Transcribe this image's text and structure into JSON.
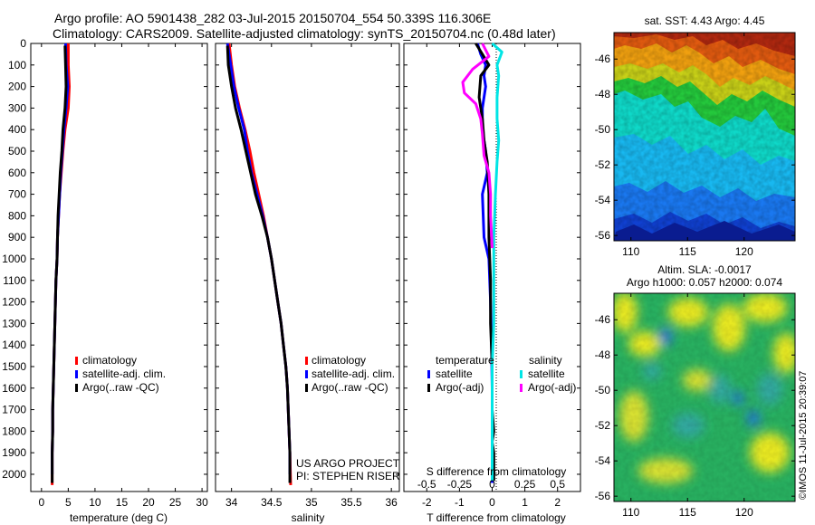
{
  "header": {
    "line1": "Argo profile: AO 5901438_282 03-Jul-2015 20150704_554 50.339S 116.306E",
    "line2": "Climatology: CARS2009. Satellite-adjusted climatology: synTS_20150704.nc (0.48d later)"
  },
  "colors": {
    "climatology": "#ff0000",
    "satellite": "#0000ff",
    "argo": "#000000",
    "salinity_satellite": "#00e5e5",
    "salinity_argo": "#ff00ff"
  },
  "chart_data": [
    {
      "type": "line",
      "name": "temperature-profile",
      "xlabel": "temperature (deg C)",
      "xlim": [
        -2,
        31
      ],
      "ylim": [
        2080,
        0
      ],
      "xticks": [
        0,
        5,
        10,
        15,
        20,
        25,
        30
      ],
      "yticks": [
        0,
        100,
        200,
        300,
        400,
        500,
        600,
        700,
        800,
        900,
        1000,
        1100,
        1200,
        1300,
        1400,
        1500,
        1600,
        1700,
        1800,
        1900,
        2000
      ],
      "legend": [
        "climatology",
        "satellite-adj. clim.",
        "Argo(..raw -QC)"
      ],
      "series": [
        {
          "name": "climatology",
          "color": "red",
          "x": [
            5.0,
            5.0,
            5.2,
            5.0,
            4.4,
            4.0,
            3.7,
            3.4,
            3.2,
            3.0,
            2.9,
            2.7,
            2.6,
            2.5,
            2.4,
            2.3,
            2.2,
            2.1,
            2.1,
            2.0,
            2.0
          ],
          "y": [
            0,
            100,
            200,
            300,
            400,
            500,
            600,
            700,
            800,
            900,
            1000,
            1100,
            1200,
            1300,
            1400,
            1500,
            1600,
            1700,
            1800,
            1900,
            2050
          ]
        },
        {
          "name": "satellite-adj. clim.",
          "color": "blue",
          "x": [
            4.5,
            4.6,
            4.9,
            4.6,
            4.2,
            3.9,
            3.6,
            3.4,
            3.2,
            3.0,
            2.9,
            2.7,
            2.6,
            2.5,
            2.4,
            2.3,
            2.2,
            2.1,
            2.1,
            2.0,
            2.0
          ],
          "y": [
            0,
            100,
            200,
            300,
            400,
            500,
            600,
            700,
            800,
            900,
            1000,
            1100,
            1200,
            1300,
            1400,
            1500,
            1600,
            1700,
            1800,
            1900,
            2000
          ]
        },
        {
          "name": "Argo(..raw -QC)",
          "color": "black",
          "x": [
            4.4,
            4.5,
            4.6,
            4.4,
            4.0,
            3.8,
            3.5,
            3.3,
            3.1,
            3.0,
            2.9,
            2.7,
            2.6,
            2.5,
            2.4,
            2.3,
            2.2,
            2.1,
            2.1,
            2.0,
            2.0
          ],
          "y": [
            10,
            100,
            200,
            300,
            400,
            500,
            600,
            700,
            800,
            900,
            1000,
            1100,
            1200,
            1300,
            1400,
            1500,
            1600,
            1700,
            1800,
            1900,
            2040
          ]
        }
      ]
    },
    {
      "type": "line",
      "name": "salinity-profile",
      "xlabel": "salinity",
      "xlim": [
        33.8,
        36.1
      ],
      "ylim": [
        2080,
        0
      ],
      "xticks": [
        34,
        34.5,
        35,
        35.5,
        36
      ],
      "legend": [
        "climatology",
        "satellite-adj. clim.",
        "Argo(..raw -QC)"
      ],
      "annotations": [
        "US ARGO PROJECT",
        "PI: STEPHEN RISER"
      ],
      "series": [
        {
          "name": "climatology",
          "color": "red",
          "x": [
            33.97,
            34.0,
            34.04,
            34.1,
            34.17,
            34.23,
            34.28,
            34.34,
            34.4,
            34.45,
            34.5,
            34.54,
            34.58,
            34.62,
            34.65,
            34.68,
            34.7,
            34.71,
            34.72,
            34.73,
            34.74
          ],
          "y": [
            0,
            100,
            200,
            300,
            400,
            500,
            600,
            700,
            800,
            900,
            1000,
            1100,
            1200,
            1300,
            1400,
            1500,
            1600,
            1700,
            1800,
            1900,
            2050
          ]
        },
        {
          "name": "satellite-adj. clim.",
          "color": "blue",
          "x": [
            33.95,
            33.99,
            34.03,
            34.09,
            34.16,
            34.2,
            34.25,
            34.32,
            34.39,
            34.45,
            34.5,
            34.54,
            34.58,
            34.62,
            34.65,
            34.68,
            34.7,
            34.71,
            34.72,
            34.73,
            34.73
          ],
          "y": [
            0,
            100,
            200,
            300,
            400,
            500,
            600,
            700,
            800,
            900,
            1000,
            1100,
            1200,
            1300,
            1400,
            1500,
            1600,
            1700,
            1800,
            1900,
            2000
          ]
        },
        {
          "name": "Argo(..raw -QC)",
          "color": "black",
          "x": [
            33.95,
            33.96,
            34.0,
            34.05,
            34.12,
            34.18,
            34.24,
            34.3,
            34.38,
            34.45,
            34.5,
            34.54,
            34.58,
            34.62,
            34.65,
            34.68,
            34.7,
            34.71,
            34.72,
            34.73,
            34.73
          ],
          "y": [
            10,
            100,
            200,
            300,
            400,
            500,
            600,
            700,
            800,
            900,
            1000,
            1100,
            1200,
            1300,
            1400,
            1500,
            1600,
            1700,
            1800,
            1900,
            2040
          ]
        }
      ]
    },
    {
      "type": "line",
      "name": "difference-profile",
      "xlabel": "T difference from climatology",
      "xlabel2": "S difference from climatology",
      "xlim": [
        -2.7,
        2.7
      ],
      "ylim": [
        2080,
        0
      ],
      "xticks": [
        -2,
        -1,
        0,
        1,
        2
      ],
      "xticks2": [
        "-0.5",
        "-0.25",
        "0",
        "0.25",
        "0.5"
      ],
      "legend_titles": [
        "temperature",
        "salinity"
      ],
      "legend": [
        "satellite",
        "Argo(-adj)",
        "satellite",
        "Argo(-adj)"
      ],
      "series": [
        {
          "name": "temperature satellite",
          "color": "blue",
          "x": [
            -0.45,
            -0.35,
            -0.2,
            -0.25,
            -0.2,
            -0.3,
            -0.3,
            -0.2,
            -0.15,
            -0.3,
            -0.25,
            -0.1,
            -0.05,
            -0.02,
            0.0,
            0.0,
            0.0,
            0.0,
            0.0,
            0.0
          ],
          "y": [
            0,
            50,
            100,
            150,
            200,
            300,
            400,
            500,
            600,
            700,
            900,
            1000,
            1200,
            1400,
            1600,
            1800,
            1900,
            1950,
            2000,
            2040
          ]
        },
        {
          "name": "temperature Argo(-adj)",
          "color": "black",
          "x": [
            -0.5,
            -0.3,
            -0.1,
            -0.35,
            -0.4,
            -0.3,
            -0.25,
            -0.15,
            -0.1,
            -0.1,
            -0.05,
            -0.05,
            0.0,
            0.0,
            0.05,
            0.0,
            0.05,
            0.05,
            0.05
          ],
          "y": [
            0,
            50,
            100,
            150,
            250,
            350,
            450,
            550,
            700,
            900,
            1100,
            1300,
            1500,
            1700,
            1800,
            1850,
            1900,
            1960,
            2030
          ]
        },
        {
          "name": "salinity satellite",
          "color": "cyan",
          "x": [
            0.0,
            0.3,
            0.15,
            0.2,
            0.15,
            0.15,
            0.2,
            0.15,
            0.1,
            0.05,
            0.05,
            0.05,
            0.0,
            0.0,
            0.0,
            0.0,
            0.0,
            0.0
          ],
          "y": [
            0,
            40,
            100,
            150,
            250,
            350,
            450,
            550,
            700,
            900,
            1100,
            1300,
            1500,
            1700,
            1800,
            1900,
            1960,
            2030
          ]
        },
        {
          "name": "salinity Argo(-adj)",
          "color": "magenta",
          "x": [
            -0.3,
            -0.1,
            -0.6,
            -0.9,
            -0.85,
            -0.5,
            -0.35,
            -0.3,
            -0.25,
            -0.1,
            -0.05,
            -0.05,
            0.0
          ],
          "y": [
            0,
            60,
            120,
            180,
            230,
            280,
            350,
            420,
            520,
            600,
            700,
            800,
            950
          ]
        }
      ]
    }
  ],
  "maps": {
    "sst": {
      "title": "sat. SST: 4.43 Argo: 4.45",
      "yticks": [
        "-46",
        "-48",
        "-50",
        "-52",
        "-54",
        "-56"
      ],
      "xticks": [
        "110",
        "115",
        "120"
      ]
    },
    "sla": {
      "title1": "Altim. SLA: -0.0017",
      "title2": "Argo h1000: 0.057 h2000: 0.074",
      "yticks": [
        "-46",
        "-48",
        "-50",
        "-52",
        "-54",
        "-56"
      ],
      "xticks": [
        "110",
        "115",
        "120"
      ]
    }
  },
  "credit": "©IMOS 11-Jul-2015 20:39:07"
}
